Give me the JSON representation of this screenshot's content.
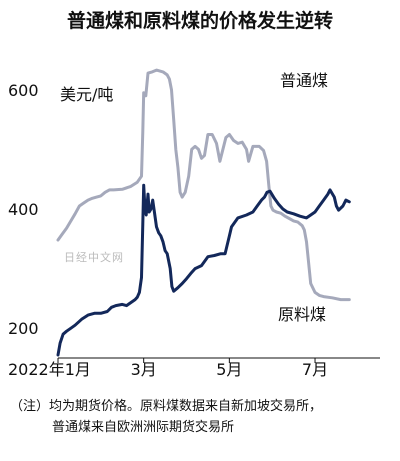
{
  "chart_data": {
    "type": "line",
    "title": "普通煤和原料煤的价格发生逆转",
    "unit_label": "美元/吨",
    "watermark": "日经中文网",
    "x_ticks": [
      "2022年1月",
      "3月",
      "5月",
      "7月"
    ],
    "x_tick_months": [
      1,
      3,
      5,
      7
    ],
    "y_ticks": [
      "600",
      "400",
      "200"
    ],
    "y_tick_values": [
      600,
      400,
      200
    ],
    "xlim": [
      1,
      8.4
    ],
    "ylim": [
      150,
      650
    ],
    "colors": {
      "普通煤": "#13285a",
      "原料煤": "#a5a9bb"
    },
    "series": [
      {
        "name": "普通煤",
        "color": "#13285a",
        "points": [
          [
            1.0,
            155
          ],
          [
            1.05,
            175
          ],
          [
            1.12,
            190
          ],
          [
            1.2,
            195
          ],
          [
            1.3,
            200
          ],
          [
            1.4,
            205
          ],
          [
            1.55,
            215
          ],
          [
            1.7,
            222
          ],
          [
            1.85,
            225
          ],
          [
            2.0,
            225
          ],
          [
            2.15,
            228
          ],
          [
            2.25,
            235
          ],
          [
            2.35,
            238
          ],
          [
            2.5,
            240
          ],
          [
            2.6,
            238
          ],
          [
            2.7,
            243
          ],
          [
            2.8,
            248
          ],
          [
            2.85,
            252
          ],
          [
            2.9,
            260
          ],
          [
            2.95,
            285
          ],
          [
            2.98,
            375
          ],
          [
            3.0,
            440
          ],
          [
            3.03,
            400
          ],
          [
            3.06,
            390
          ],
          [
            3.1,
            425
          ],
          [
            3.13,
            395
          ],
          [
            3.17,
            400
          ],
          [
            3.21,
            415
          ],
          [
            3.25,
            395
          ],
          [
            3.3,
            370
          ],
          [
            3.35,
            360
          ],
          [
            3.4,
            355
          ],
          [
            3.45,
            345
          ],
          [
            3.5,
            330
          ],
          [
            3.55,
            325
          ],
          [
            3.62,
            300
          ],
          [
            3.66,
            270
          ],
          [
            3.7,
            262
          ],
          [
            3.8,
            268
          ],
          [
            3.9,
            275
          ],
          [
            4.0,
            283
          ],
          [
            4.1,
            292
          ],
          [
            4.2,
            300
          ],
          [
            4.35,
            305
          ],
          [
            4.5,
            320
          ],
          [
            4.65,
            322
          ],
          [
            4.8,
            325
          ],
          [
            4.9,
            325
          ],
          [
            5.0,
            355
          ],
          [
            5.05,
            370
          ],
          [
            5.2,
            385
          ],
          [
            5.4,
            390
          ],
          [
            5.55,
            395
          ],
          [
            5.65,
            405
          ],
          [
            5.75,
            415
          ],
          [
            5.82,
            420
          ],
          [
            5.88,
            428
          ],
          [
            5.95,
            430
          ],
          [
            6.05,
            418
          ],
          [
            6.15,
            408
          ],
          [
            6.25,
            400
          ],
          [
            6.35,
            395
          ],
          [
            6.5,
            392
          ],
          [
            6.65,
            388
          ],
          [
            6.8,
            385
          ],
          [
            6.9,
            390
          ],
          [
            7.0,
            395
          ],
          [
            7.1,
            405
          ],
          [
            7.2,
            415
          ],
          [
            7.3,
            425
          ],
          [
            7.35,
            432
          ],
          [
            7.45,
            420
          ],
          [
            7.5,
            405
          ],
          [
            7.55,
            398
          ],
          [
            7.65,
            405
          ],
          [
            7.72,
            415
          ],
          [
            7.8,
            412
          ]
        ]
      },
      {
        "name": "原料煤",
        "color": "#a5a9bb",
        "points": [
          [
            1.0,
            348
          ],
          [
            1.1,
            358
          ],
          [
            1.2,
            368
          ],
          [
            1.3,
            380
          ],
          [
            1.4,
            392
          ],
          [
            1.5,
            405
          ],
          [
            1.6,
            410
          ],
          [
            1.7,
            415
          ],
          [
            1.8,
            418
          ],
          [
            1.9,
            420
          ],
          [
            2.0,
            422
          ],
          [
            2.1,
            428
          ],
          [
            2.2,
            432
          ],
          [
            2.3,
            432
          ],
          [
            2.5,
            433
          ],
          [
            2.7,
            438
          ],
          [
            2.85,
            445
          ],
          [
            2.95,
            455
          ],
          [
            2.98,
            530
          ],
          [
            3.0,
            595
          ],
          [
            3.05,
            590
          ],
          [
            3.1,
            628
          ],
          [
            3.2,
            630
          ],
          [
            3.3,
            633
          ],
          [
            3.45,
            630
          ],
          [
            3.55,
            625
          ],
          [
            3.6,
            618
          ],
          [
            3.65,
            600
          ],
          [
            3.7,
            550
          ],
          [
            3.75,
            500
          ],
          [
            3.8,
            470
          ],
          [
            3.85,
            428
          ],
          [
            3.9,
            420
          ],
          [
            3.97,
            428
          ],
          [
            4.05,
            455
          ],
          [
            4.12,
            500
          ],
          [
            4.2,
            505
          ],
          [
            4.28,
            500
          ],
          [
            4.35,
            485
          ],
          [
            4.42,
            490
          ],
          [
            4.5,
            525
          ],
          [
            4.6,
            525
          ],
          [
            4.7,
            510
          ],
          [
            4.78,
            480
          ],
          [
            4.85,
            500
          ],
          [
            4.92,
            520
          ],
          [
            5.0,
            525
          ],
          [
            5.1,
            515
          ],
          [
            5.2,
            510
          ],
          [
            5.3,
            512
          ],
          [
            5.4,
            500
          ],
          [
            5.45,
            480
          ],
          [
            5.55,
            505
          ],
          [
            5.7,
            505
          ],
          [
            5.8,
            498
          ],
          [
            5.87,
            480
          ],
          [
            5.92,
            440
          ],
          [
            5.97,
            405
          ],
          [
            6.02,
            398
          ],
          [
            6.1,
            395
          ],
          [
            6.2,
            393
          ],
          [
            6.3,
            388
          ],
          [
            6.4,
            384
          ],
          [
            6.5,
            380
          ],
          [
            6.6,
            378
          ],
          [
            6.7,
            372
          ],
          [
            6.75,
            365
          ],
          [
            6.8,
            345
          ],
          [
            6.85,
            310
          ],
          [
            6.9,
            275
          ],
          [
            7.0,
            260
          ],
          [
            7.1,
            255
          ],
          [
            7.2,
            253
          ],
          [
            7.4,
            251
          ],
          [
            7.6,
            248
          ],
          [
            7.8,
            248
          ]
        ]
      }
    ]
  },
  "footnote": {
    "line1": "（注）均为期货价格。原料煤数据来自新加坡交易所，",
    "line2": "普通煤来自欧洲洲际期货交易所"
  }
}
